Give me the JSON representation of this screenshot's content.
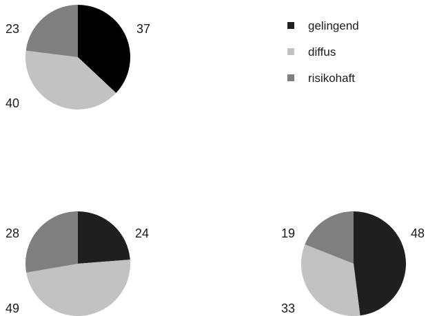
{
  "legend": {
    "entries": [
      {
        "label": "gelingend",
        "color": "#1f1f1f"
      },
      {
        "label": "diffus",
        "color": "#c2c2c2"
      },
      {
        "label": "risikohaft",
        "color": "#7f7f7f"
      }
    ]
  },
  "chart_data": [
    {
      "type": "pie",
      "categories": [
        "gelingend",
        "diffus",
        "risikohaft"
      ],
      "values": [
        37,
        40,
        23
      ],
      "colors": [
        "#000000",
        "#c2c2c2",
        "#7f7f7f"
      ]
    },
    {
      "type": "pie",
      "categories": [
        "gelingend",
        "diffus",
        "risikohaft"
      ],
      "values": [
        24,
        49,
        28
      ],
      "colors": [
        "#1f1f1f",
        "#c2c2c2",
        "#7f7f7f"
      ]
    },
    {
      "type": "pie",
      "categories": [
        "gelingend",
        "diffus",
        "risikohaft"
      ],
      "values": [
        48,
        33,
        19
      ],
      "colors": [
        "#1f1f1f",
        "#c2c2c2",
        "#7f7f7f"
      ]
    }
  ]
}
